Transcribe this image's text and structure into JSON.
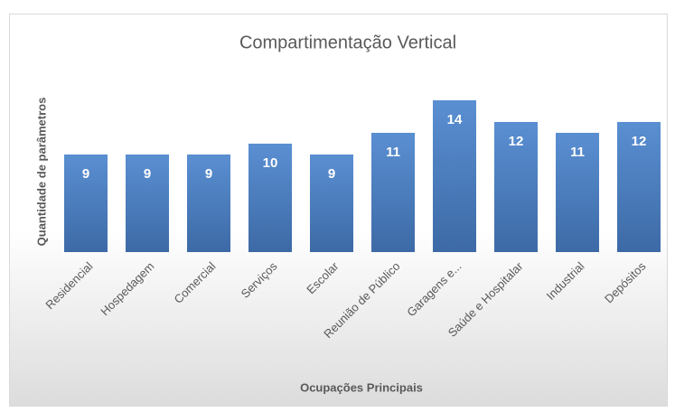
{
  "chart_data": {
    "type": "bar",
    "title": "Compartimentação Vertical",
    "x_label": "Ocupações Principais",
    "y_label": "Quantidade de parâmetros",
    "categories": [
      "Residencial",
      "Hospedagem",
      "Comercial",
      "Serviços",
      "Escolar",
      "Reunião de Público",
      "Garagens e...",
      "Saúde e Hospitalar",
      "Industrial",
      "Depósitos"
    ],
    "values": [
      9,
      9,
      9,
      10,
      9,
      11,
      14,
      12,
      11,
      12
    ],
    "color": "#4a7ebb",
    "ylim": [
      0,
      16
    ]
  }
}
